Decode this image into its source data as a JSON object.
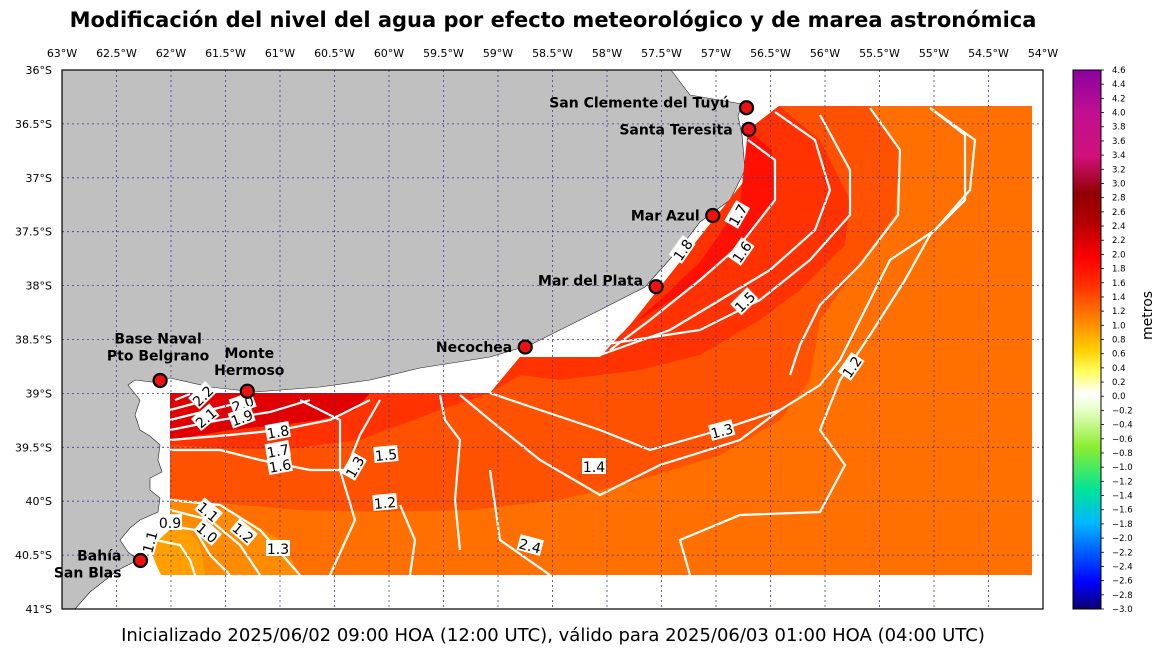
{
  "title": "Modificación del nivel del agua por efecto meteorológico y de marea astronómica",
  "footer": "Inicializado 2025/06/02 09:00 HOA (12:00 UTC), válido para 2025/06/03 01:00 HOA (04:00 UTC)",
  "map": {
    "lon_ticks": [
      "63°W",
      "62.5°W",
      "62°W",
      "61.5°W",
      "61°W",
      "60.5°W",
      "60°W",
      "59.5°W",
      "59°W",
      "58.5°W",
      "58°W",
      "57.5°W",
      "57°W",
      "56.5°W",
      "56°W",
      "55.5°W",
      "55°W",
      "54.5°W",
      "54°W"
    ],
    "lat_ticks": [
      "36°S",
      "36.5°S",
      "37°S",
      "37.5°S",
      "38°S",
      "38.5°S",
      "39°S",
      "39.5°S",
      "40°S",
      "40.5°S",
      "41°S"
    ],
    "lon_range": [
      -63,
      -54
    ],
    "lat_range": [
      -41,
      -36
    ],
    "stations": [
      {
        "name": "San Clemente del Tuyú",
        "lon": -56.72,
        "lat": -36.35
      },
      {
        "name": "Santa Teresita",
        "lon": -56.7,
        "lat": -36.55
      },
      {
        "name": "Mar Azul",
        "lon": -57.03,
        "lat": -37.35
      },
      {
        "name": "Mar del Plata",
        "lon": -57.55,
        "lat": -38.01
      },
      {
        "name": "Necochea",
        "lon": -58.75,
        "lat": -38.57
      },
      {
        "name": "Base Naval\nPto Belgrano",
        "lon": -62.1,
        "lat": -38.88
      },
      {
        "name": "Monte\nHermoso",
        "lon": -61.3,
        "lat": -38.98
      },
      {
        "name": "Bahía\nSan Blas",
        "lon": -62.28,
        "lat": -40.55
      }
    ],
    "contour_labels": [
      "1.7",
      "1.8",
      "1.6",
      "1.5",
      "1.2",
      "1.3",
      "1.4",
      "1.5",
      "1.3",
      "1.2",
      "2.4",
      "2.2",
      "2.1",
      "2.0",
      "1.9",
      "1.8",
      "1.7",
      "1.6",
      "1.1",
      "1.0",
      "0.9",
      "1.1",
      "1.2",
      "1.3"
    ],
    "colors": {
      "land": "#c0c0c0",
      "grid": "#3a3aa0",
      "contour": "#ffffff",
      "station_fill": "#ee1111"
    }
  },
  "colorbar": {
    "label": "metros",
    "ticks": [
      "4.6",
      "4.4",
      "4.2",
      "4.0",
      "3.8",
      "3.6",
      "3.4",
      "3.2",
      "3.0",
      "2.8",
      "2.6",
      "2.4",
      "2.2",
      "2.0",
      "1.8",
      "1.6",
      "1.4",
      "1.2",
      "1.0",
      "0.8",
      "0.6",
      "0.4",
      "0.2",
      "0.0",
      "−0.2",
      "−0.4",
      "−0.6",
      "−0.8",
      "−1.0",
      "−1.2",
      "−1.4",
      "−1.6",
      "−1.8",
      "−2.0",
      "−2.2",
      "−2.4",
      "−2.6",
      "−2.8",
      "−3.0"
    ],
    "range": [
      -3.0,
      4.6
    ]
  }
}
